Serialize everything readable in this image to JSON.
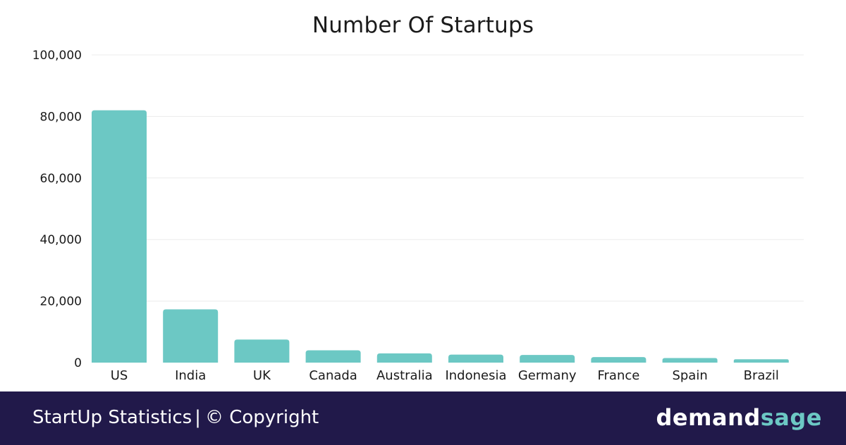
{
  "chart_data": {
    "type": "bar",
    "title": "Number Of Startups",
    "categories": [
      "US",
      "India",
      "UK",
      "Canada",
      "Australia",
      "Indonesia",
      "Germany",
      "France",
      "Spain",
      "Brazil"
    ],
    "values": [
      82000,
      17300,
      7500,
      4000,
      3000,
      2600,
      2500,
      1800,
      1500,
      1100
    ],
    "ylim": [
      0,
      100000
    ],
    "yticks": [
      "0",
      "20,000",
      "40,000",
      "60,000",
      "80,000",
      "100,000"
    ],
    "ytick_values": [
      0,
      20000,
      40000,
      60000,
      80000,
      100000
    ],
    "grid": true,
    "bar_color": "#6cc8c4"
  },
  "footer": {
    "caption": "StartUp Statistics",
    "separator": "|",
    "copyright": "© Copyright",
    "brand_part1": "demand",
    "brand_part2": "sage"
  }
}
